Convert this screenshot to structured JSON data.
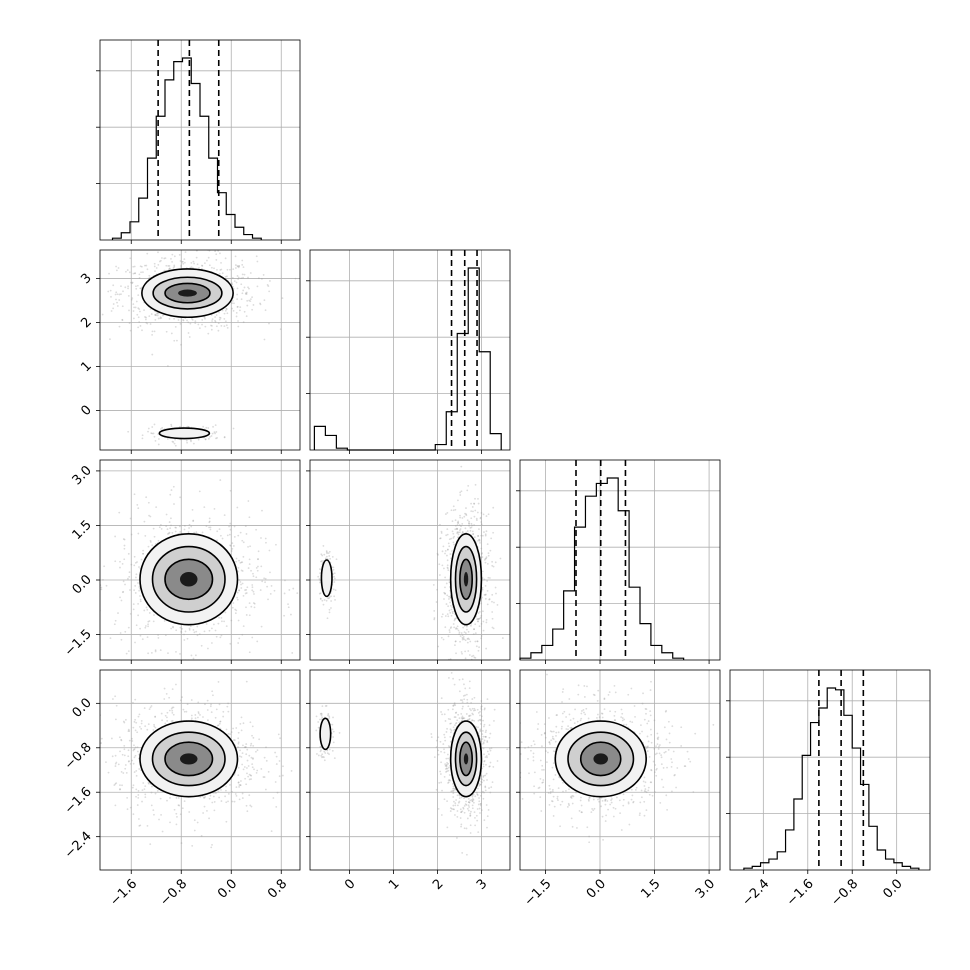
{
  "chart_data": {
    "type": "corner",
    "parameters": 4,
    "grid": true,
    "colors": {
      "line": "#000000",
      "grid": "#b0b0b0",
      "points": "#9a9a9a"
    },
    "axes": [
      {
        "range": [
          -2.1,
          1.1
        ],
        "ticks": [
          -1.6,
          -0.8,
          0.0,
          0.8
        ],
        "tick_labels": [
          "−1.6",
          "−0.8",
          "0.0",
          "0.8"
        ]
      },
      {
        "range": [
          -0.9,
          3.65
        ],
        "ticks": [
          0,
          1,
          2,
          3
        ],
        "tick_labels": [
          "0",
          "1",
          "2",
          "3"
        ]
      },
      {
        "range": [
          -2.2,
          3.3
        ],
        "ticks": [
          -1.5,
          0.0,
          1.5,
          3.0
        ],
        "tick_labels": [
          "−1.5",
          "0.0",
          "1.5",
          "3.0"
        ]
      },
      {
        "range": [
          -3.0,
          0.6
        ],
        "ticks": [
          -2.4,
          -1.6,
          -0.8,
          0.0
        ],
        "tick_labels": [
          "−2.4",
          "−1.6",
          "−0.8",
          "0.0"
        ]
      }
    ],
    "marginals": [
      {
        "param": 0,
        "bins": [
          -1.9,
          -1.76,
          -1.62,
          -1.48,
          -1.34,
          -1.2,
          -1.06,
          -0.92,
          -0.78,
          -0.64,
          -0.5,
          -0.36,
          -0.22,
          -0.08,
          0.06,
          0.2,
          0.34,
          0.48
        ],
        "counts": [
          1,
          4,
          10,
          23,
          45,
          68,
          88,
          98,
          100,
          86,
          68,
          45,
          26,
          14,
          7,
          3,
          1
        ],
        "quantiles": [
          -1.17,
          -0.67,
          -0.2
        ]
      },
      {
        "param": 1,
        "bins": [
          -0.8,
          -0.55,
          -0.3,
          -0.05,
          0.2,
          0.45,
          0.7,
          0.95,
          1.2,
          1.45,
          1.7,
          1.95,
          2.2,
          2.45,
          2.7,
          2.95,
          3.2,
          3.45
        ],
        "counts": [
          13,
          8,
          1,
          0,
          0,
          0,
          0,
          0,
          0,
          0,
          0,
          3,
          21,
          64,
          100,
          54,
          9
        ],
        "quantiles": [
          2.32,
          2.62,
          2.9
        ]
      },
      {
        "param": 2,
        "bins": [
          -2.2,
          -1.9,
          -1.6,
          -1.3,
          -1.0,
          -0.7,
          -0.4,
          -0.1,
          0.2,
          0.5,
          0.8,
          1.1,
          1.4,
          1.7,
          2.0,
          2.3
        ],
        "counts": [
          1,
          4,
          8,
          17,
          38,
          73,
          90,
          97,
          100,
          82,
          40,
          20,
          8,
          4,
          1
        ],
        "quantiles": [
          -0.66,
          0.02,
          0.7
        ]
      },
      {
        "param": 3,
        "bins": [
          -2.75,
          -2.6,
          -2.45,
          -2.3,
          -2.15,
          -2.0,
          -1.85,
          -1.7,
          -1.55,
          -1.4,
          -1.25,
          -1.1,
          -0.95,
          -0.8,
          -0.65,
          -0.5,
          -0.35,
          -0.2,
          -0.05,
          0.1,
          0.25,
          0.4
        ],
        "counts": [
          1,
          2,
          4,
          6,
          10,
          22,
          39,
          63,
          81,
          89,
          100,
          99,
          85,
          67,
          47,
          24,
          11,
          6,
          4,
          2,
          1
        ],
        "quantiles": [
          -1.4,
          -1.0,
          -0.6
        ]
      }
    ],
    "joint": [
      {
        "x": 0,
        "y": 1,
        "clusters": [
          {
            "cx": -0.7,
            "cy": 2.67,
            "rx": [
              0.73,
              0.55,
              0.36,
              0.15
            ],
            "ry": [
              0.55,
              0.36,
              0.22,
              0.08
            ]
          },
          {
            "cx": -0.75,
            "cy": -0.52,
            "rx": [
              0.4
            ],
            "ry": [
              0.12
            ]
          }
        ]
      },
      {
        "x": 0,
        "y": 2,
        "clusters": [
          {
            "cx": -0.68,
            "cy": 0.02,
            "rx": [
              0.78,
              0.58,
              0.38,
              0.14
            ],
            "ry": [
              1.25,
              0.9,
              0.55,
              0.2
            ]
          }
        ]
      },
      {
        "x": 0,
        "y": 3,
        "clusters": [
          {
            "cx": -0.68,
            "cy": -1.0,
            "rx": [
              0.78,
              0.58,
              0.38,
              0.14
            ],
            "ry": [
              0.68,
              0.48,
              0.3,
              0.1
            ]
          }
        ]
      },
      {
        "x": 1,
        "y": 2,
        "clusters": [
          {
            "cx": 2.65,
            "cy": 0.02,
            "rx": [
              0.35,
              0.24,
              0.14,
              0.05
            ],
            "ry": [
              1.25,
              0.9,
              0.55,
              0.2
            ]
          },
          {
            "cx": -0.52,
            "cy": 0.05,
            "rx": [
              0.12
            ],
            "ry": [
              0.5
            ]
          }
        ]
      },
      {
        "x": 1,
        "y": 3,
        "clusters": [
          {
            "cx": 2.65,
            "cy": -1.0,
            "rx": [
              0.35,
              0.24,
              0.14,
              0.05
            ],
            "ry": [
              0.68,
              0.48,
              0.3,
              0.1
            ]
          },
          {
            "cx": -0.55,
            "cy": -0.55,
            "rx": [
              0.12
            ],
            "ry": [
              0.28
            ]
          }
        ]
      },
      {
        "x": 2,
        "y": 3,
        "clusters": [
          {
            "cx": 0.02,
            "cy": -1.0,
            "rx": [
              1.25,
              0.9,
              0.55,
              0.2
            ],
            "ry": [
              0.68,
              0.48,
              0.3,
              0.1
            ]
          }
        ]
      }
    ]
  }
}
